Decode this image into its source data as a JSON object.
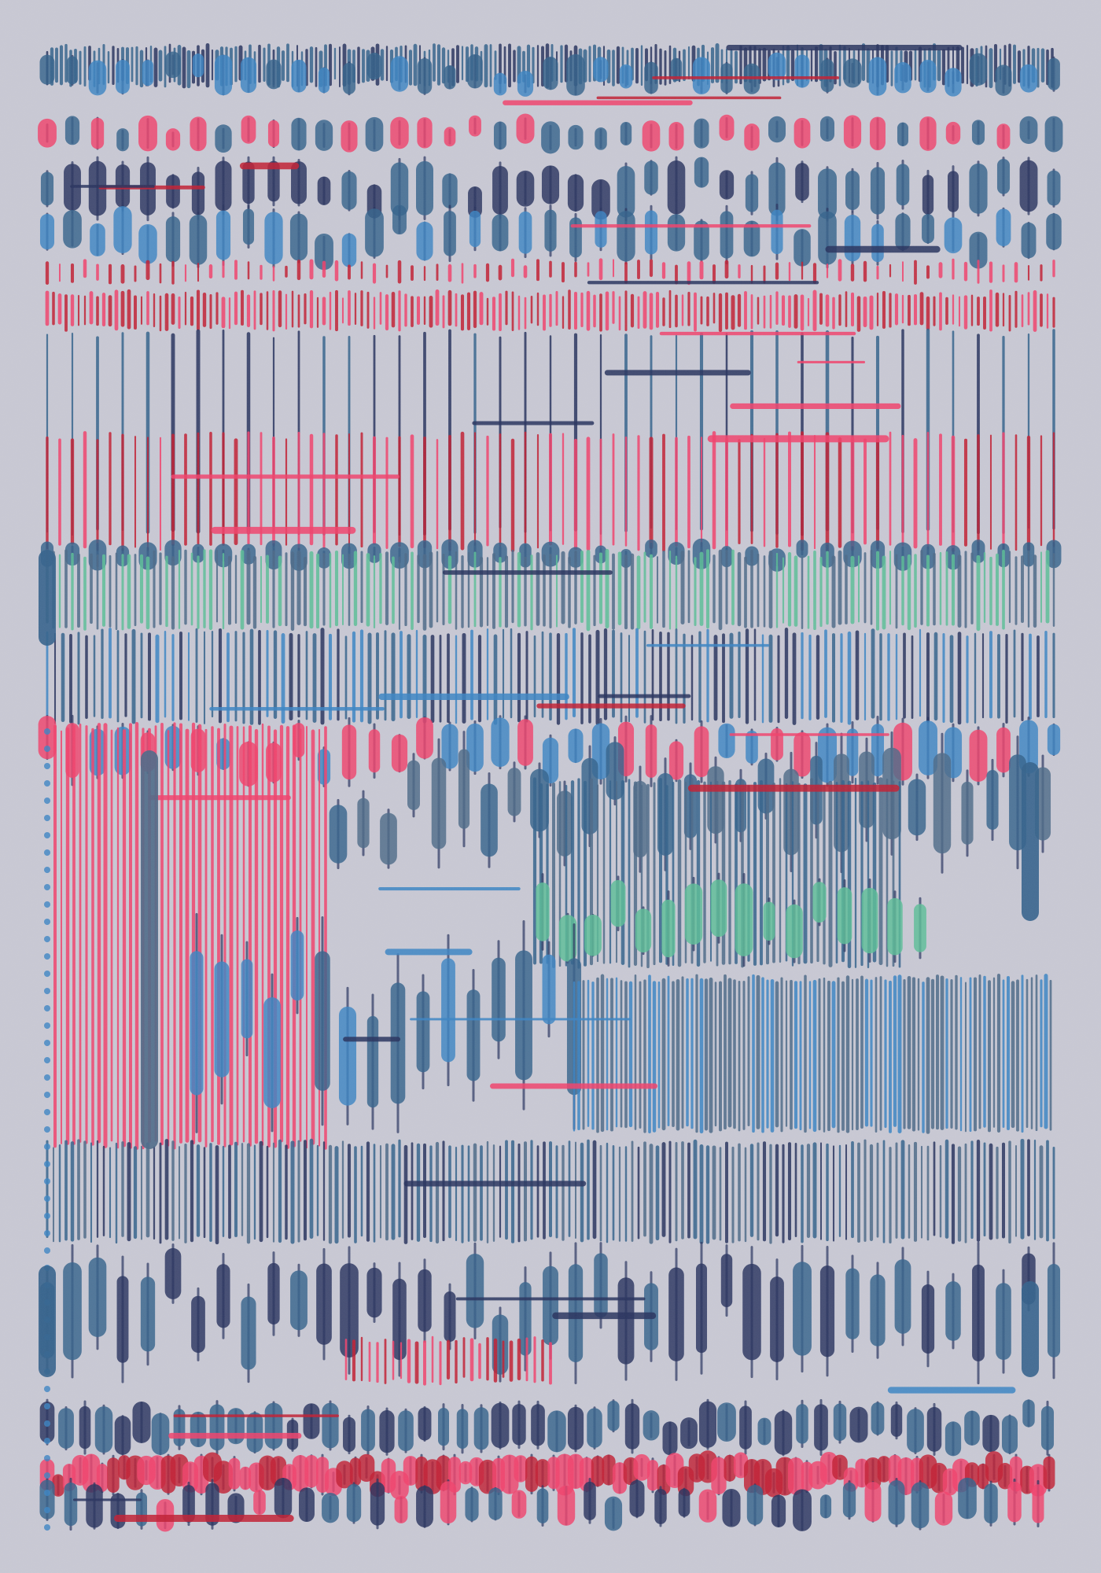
{
  "artwork": {
    "background": "#c9c9d4",
    "seed": 7,
    "palette": {
      "steel_blue": "#35638c",
      "navy": "#28335e",
      "light_blue": "#3c85c4",
      "pink": "#f2426c",
      "red": "#c21f33",
      "green": "#5cbf98",
      "slate": "#4d6a88"
    }
  }
}
